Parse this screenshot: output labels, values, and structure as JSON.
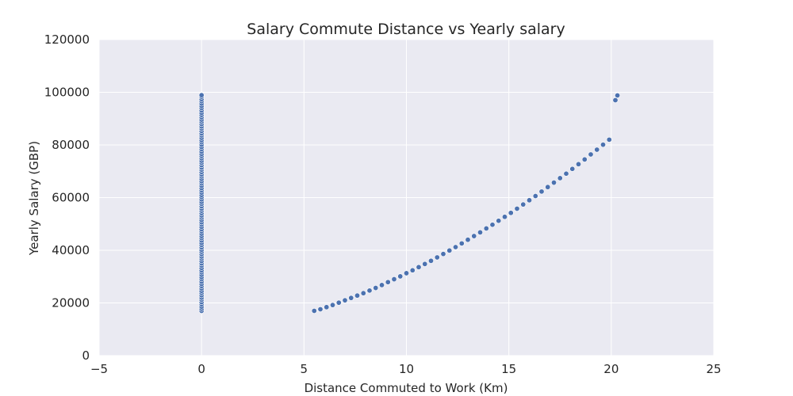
{
  "chart_data": {
    "type": "scatter",
    "title": "Salary Commute Distance vs Yearly salary",
    "xlabel": "Distance Commuted to Work (Km)",
    "ylabel": "Yearly Salary (GBP)",
    "xlim": [
      -5,
      25
    ],
    "ylim": [
      0,
      120000
    ],
    "xticks": [
      -5,
      0,
      5,
      10,
      15,
      20,
      25
    ],
    "xtick_labels": [
      "−5",
      "0",
      "5",
      "10",
      "15",
      "20",
      "25"
    ],
    "yticks": [
      0,
      20000,
      40000,
      60000,
      80000,
      100000,
      120000
    ],
    "ytick_labels": [
      "0",
      "20000",
      "40000",
      "60000",
      "80000",
      "100000",
      "120000"
    ],
    "grid": true,
    "background": "#eaeaf2",
    "gridColor": "#ffffff",
    "markerColor": "#4c72b0",
    "markerEdge": "#ffffff",
    "series": [
      {
        "points": [
          [
            0,
            17000
          ],
          [
            0,
            17800
          ],
          [
            0,
            18600
          ],
          [
            0,
            19500
          ],
          [
            0,
            20300
          ],
          [
            0,
            21200
          ],
          [
            0,
            22000
          ],
          [
            0,
            22900
          ],
          [
            0,
            23800
          ],
          [
            0,
            24600
          ],
          [
            0,
            25500
          ],
          [
            0,
            26400
          ],
          [
            0,
            27200
          ],
          [
            0,
            28100
          ],
          [
            0,
            29000
          ],
          [
            0,
            29800
          ],
          [
            0,
            30700
          ],
          [
            0,
            31600
          ],
          [
            0,
            32400
          ],
          [
            0,
            33300
          ],
          [
            0,
            34200
          ],
          [
            0,
            35000
          ],
          [
            0,
            35900
          ],
          [
            0,
            36800
          ],
          [
            0,
            37600
          ],
          [
            0,
            38500
          ],
          [
            0,
            39400
          ],
          [
            0,
            40200
          ],
          [
            0,
            41100
          ],
          [
            0,
            42000
          ],
          [
            0,
            42800
          ],
          [
            0,
            43700
          ],
          [
            0,
            44600
          ],
          [
            0,
            45400
          ],
          [
            0,
            46300
          ],
          [
            0,
            47200
          ],
          [
            0,
            48000
          ],
          [
            0,
            48900
          ],
          [
            0,
            49800
          ],
          [
            0,
            50600
          ],
          [
            0,
            51500
          ],
          [
            0,
            52400
          ],
          [
            0,
            53200
          ],
          [
            0,
            54100
          ],
          [
            0,
            55000
          ],
          [
            0,
            55800
          ],
          [
            0,
            56700
          ],
          [
            0,
            57600
          ],
          [
            0,
            58400
          ],
          [
            0,
            59300
          ],
          [
            0,
            60200
          ],
          [
            0,
            61000
          ],
          [
            0,
            61900
          ],
          [
            0,
            62800
          ],
          [
            0,
            63600
          ],
          [
            0,
            64500
          ],
          [
            0,
            65400
          ],
          [
            0,
            66200
          ],
          [
            0,
            67100
          ],
          [
            0,
            68000
          ],
          [
            0,
            68800
          ],
          [
            0,
            69700
          ],
          [
            0,
            70600
          ],
          [
            0,
            71400
          ],
          [
            0,
            72300
          ],
          [
            0,
            73200
          ],
          [
            0,
            74000
          ],
          [
            0,
            74900
          ],
          [
            0,
            75800
          ],
          [
            0,
            76600
          ],
          [
            0,
            77500
          ],
          [
            0,
            78400
          ],
          [
            0,
            79200
          ],
          [
            0,
            80100
          ],
          [
            0,
            81000
          ],
          [
            0,
            81800
          ],
          [
            0,
            82700
          ],
          [
            0,
            83600
          ],
          [
            0,
            84400
          ],
          [
            0,
            85300
          ],
          [
            0,
            86200
          ],
          [
            0,
            87000
          ],
          [
            0,
            87900
          ],
          [
            0,
            88800
          ],
          [
            0,
            89600
          ],
          [
            0,
            90500
          ],
          [
            0,
            91400
          ],
          [
            0,
            92200
          ],
          [
            0,
            93100
          ],
          [
            0,
            94000
          ],
          [
            0,
            94800
          ],
          [
            0,
            95700
          ],
          [
            0,
            96600
          ],
          [
            0,
            97400
          ],
          [
            0,
            98300
          ],
          [
            0,
            98900
          ],
          [
            5.5,
            17000
          ],
          [
            5.8,
            17600
          ],
          [
            6.1,
            18400
          ],
          [
            6.4,
            19200
          ],
          [
            6.7,
            20100
          ],
          [
            7.0,
            21000
          ],
          [
            7.3,
            21900
          ],
          [
            7.6,
            22800
          ],
          [
            7.9,
            23700
          ],
          [
            8.2,
            24700
          ],
          [
            8.5,
            25700
          ],
          [
            8.8,
            26800
          ],
          [
            9.1,
            27900
          ],
          [
            9.4,
            29000
          ],
          [
            9.7,
            30100
          ],
          [
            10.0,
            31300
          ],
          [
            10.3,
            32400
          ],
          [
            10.6,
            33600
          ],
          [
            10.9,
            34800
          ],
          [
            11.2,
            36000
          ],
          [
            11.5,
            37300
          ],
          [
            11.8,
            38600
          ],
          [
            12.1,
            39900
          ],
          [
            12.4,
            41200
          ],
          [
            12.7,
            42600
          ],
          [
            13.0,
            44000
          ],
          [
            13.3,
            45400
          ],
          [
            13.6,
            46800
          ],
          [
            13.9,
            48300
          ],
          [
            14.2,
            49700
          ],
          [
            14.5,
            51200
          ],
          [
            14.8,
            52700
          ],
          [
            15.1,
            54200
          ],
          [
            15.4,
            55800
          ],
          [
            15.7,
            57400
          ],
          [
            16.0,
            59000
          ],
          [
            16.3,
            60600
          ],
          [
            16.6,
            62300
          ],
          [
            16.9,
            64000
          ],
          [
            17.2,
            65700
          ],
          [
            17.5,
            67400
          ],
          [
            17.8,
            69100
          ],
          [
            18.1,
            70900
          ],
          [
            18.4,
            72700
          ],
          [
            18.7,
            74500
          ],
          [
            19.0,
            76400
          ],
          [
            19.3,
            78200
          ],
          [
            19.6,
            80100
          ],
          [
            19.9,
            82000
          ],
          [
            20.2,
            97000
          ],
          [
            20.3,
            98800
          ]
        ]
      }
    ]
  }
}
